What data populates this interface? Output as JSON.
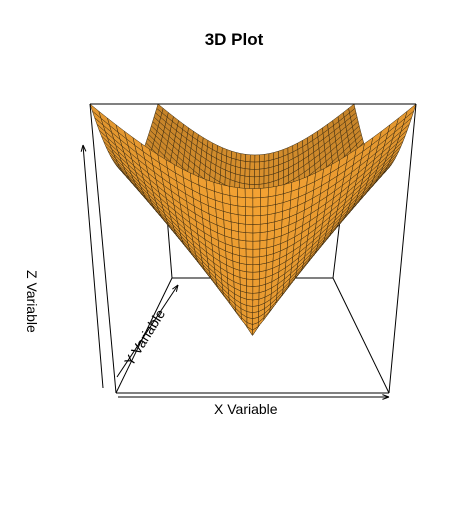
{
  "chart_data": {
    "type": "surface",
    "title": "3D Plot",
    "xlabel": "X Variable",
    "ylabel": "Y Variable",
    "zlabel": "Z Variable",
    "surface_function": "sqrt(x^2 + y^2)",
    "x_range": [
      -1,
      1
    ],
    "y_range": [
      -1,
      1
    ],
    "grid_resolution": 40,
    "projection_angles": {
      "theta": 0,
      "phi": 25
    },
    "colors": {
      "surface_fill": "#F5A333",
      "surface_edge": "#3a2a10",
      "box": "#000000"
    },
    "axes_ticks_shown": false
  }
}
